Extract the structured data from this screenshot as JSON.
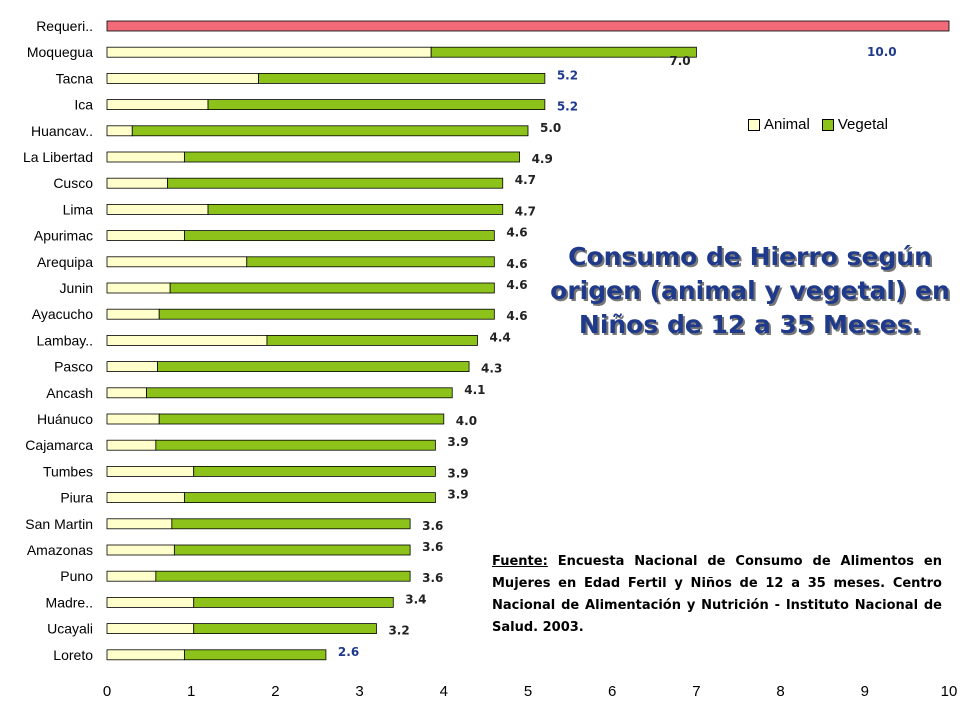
{
  "title": "Consumo de Hierro según origen (animal y vegetal) en Niños de 12 a 35 Meses.",
  "source": {
    "label": "Fuente:",
    "text": "Encuesta Nacional de Consumo de Alimentos en Mujeres en Edad Fertil y Niños de 12 a 35 meses. Centro Nacional de Alimentación y Nutrición - Instituto Nacional de Salud. 2003."
  },
  "colors": {
    "animal": "#ffffcc",
    "vegetal": "#8cc21a",
    "requerimiento": "#f06a78",
    "label_blue": "#1f3a8a",
    "label_dark": "#222222"
  },
  "chart_data": {
    "type": "bar",
    "orientation": "horizontal",
    "stacked": true,
    "xlim": [
      0,
      10
    ],
    "xticks": [
      "0",
      "1",
      "2",
      "3",
      "4",
      "5",
      "6",
      "7",
      "8",
      "9",
      "10"
    ],
    "legend": {
      "placement": "top-right",
      "entries": [
        "Animal",
        "Vegetal"
      ]
    },
    "categories": [
      "Requeri..",
      "Moquegua",
      "Tacna",
      "Ica",
      "Huancav..",
      "La Libertad",
      "Cusco",
      "Lima",
      "Apurimac",
      "Arequipa",
      "Junin",
      "Ayacucho",
      "Lambay..",
      "Pasco",
      "Ancash",
      "Huánuco",
      "Cajamarca",
      "Tumbes",
      "Piura",
      "San Martin",
      "Amazonas",
      "Puno",
      "Madre..",
      "Ucayali",
      "Loreto"
    ],
    "series": [
      {
        "name": "Animal",
        "values": [
          null,
          3.85,
          1.8,
          1.2,
          0.3,
          0.92,
          0.72,
          1.2,
          0.92,
          1.66,
          0.75,
          0.62,
          1.9,
          0.6,
          0.47,
          0.62,
          0.58,
          1.03,
          0.92,
          0.77,
          0.8,
          0.58,
          1.03,
          1.03,
          0.92
        ]
      },
      {
        "name": "Vegetal",
        "values": [
          null,
          3.15,
          3.4,
          4.0,
          4.7,
          3.98,
          3.98,
          3.5,
          3.68,
          2.94,
          3.85,
          3.98,
          2.5,
          3.7,
          3.63,
          3.38,
          3.32,
          2.87,
          2.98,
          2.83,
          2.8,
          3.02,
          2.37,
          2.17,
          1.68
        ]
      },
      {
        "name": "Requerimiento",
        "values": [
          10.0,
          null,
          null,
          null,
          null,
          null,
          null,
          null,
          null,
          null,
          null,
          null,
          null,
          null,
          null,
          null,
          null,
          null,
          null,
          null,
          null,
          null,
          null,
          null,
          null
        ]
      }
    ],
    "data_labels": [
      "10.0",
      "7.0",
      "5.2",
      "5.2",
      "5.0",
      "4.9",
      "4.7",
      "4.7",
      "4.6",
      "4.6",
      "4.6",
      "4.6",
      "4.4",
      "4.3",
      "4.1",
      "4.0",
      "3.9",
      "3.9",
      "3.9",
      "3.6",
      "3.6",
      "3.6",
      "3.4",
      "3.2",
      "2.6"
    ],
    "blue_labels": [
      "10.0",
      "5.2",
      "2.6"
    ]
  }
}
